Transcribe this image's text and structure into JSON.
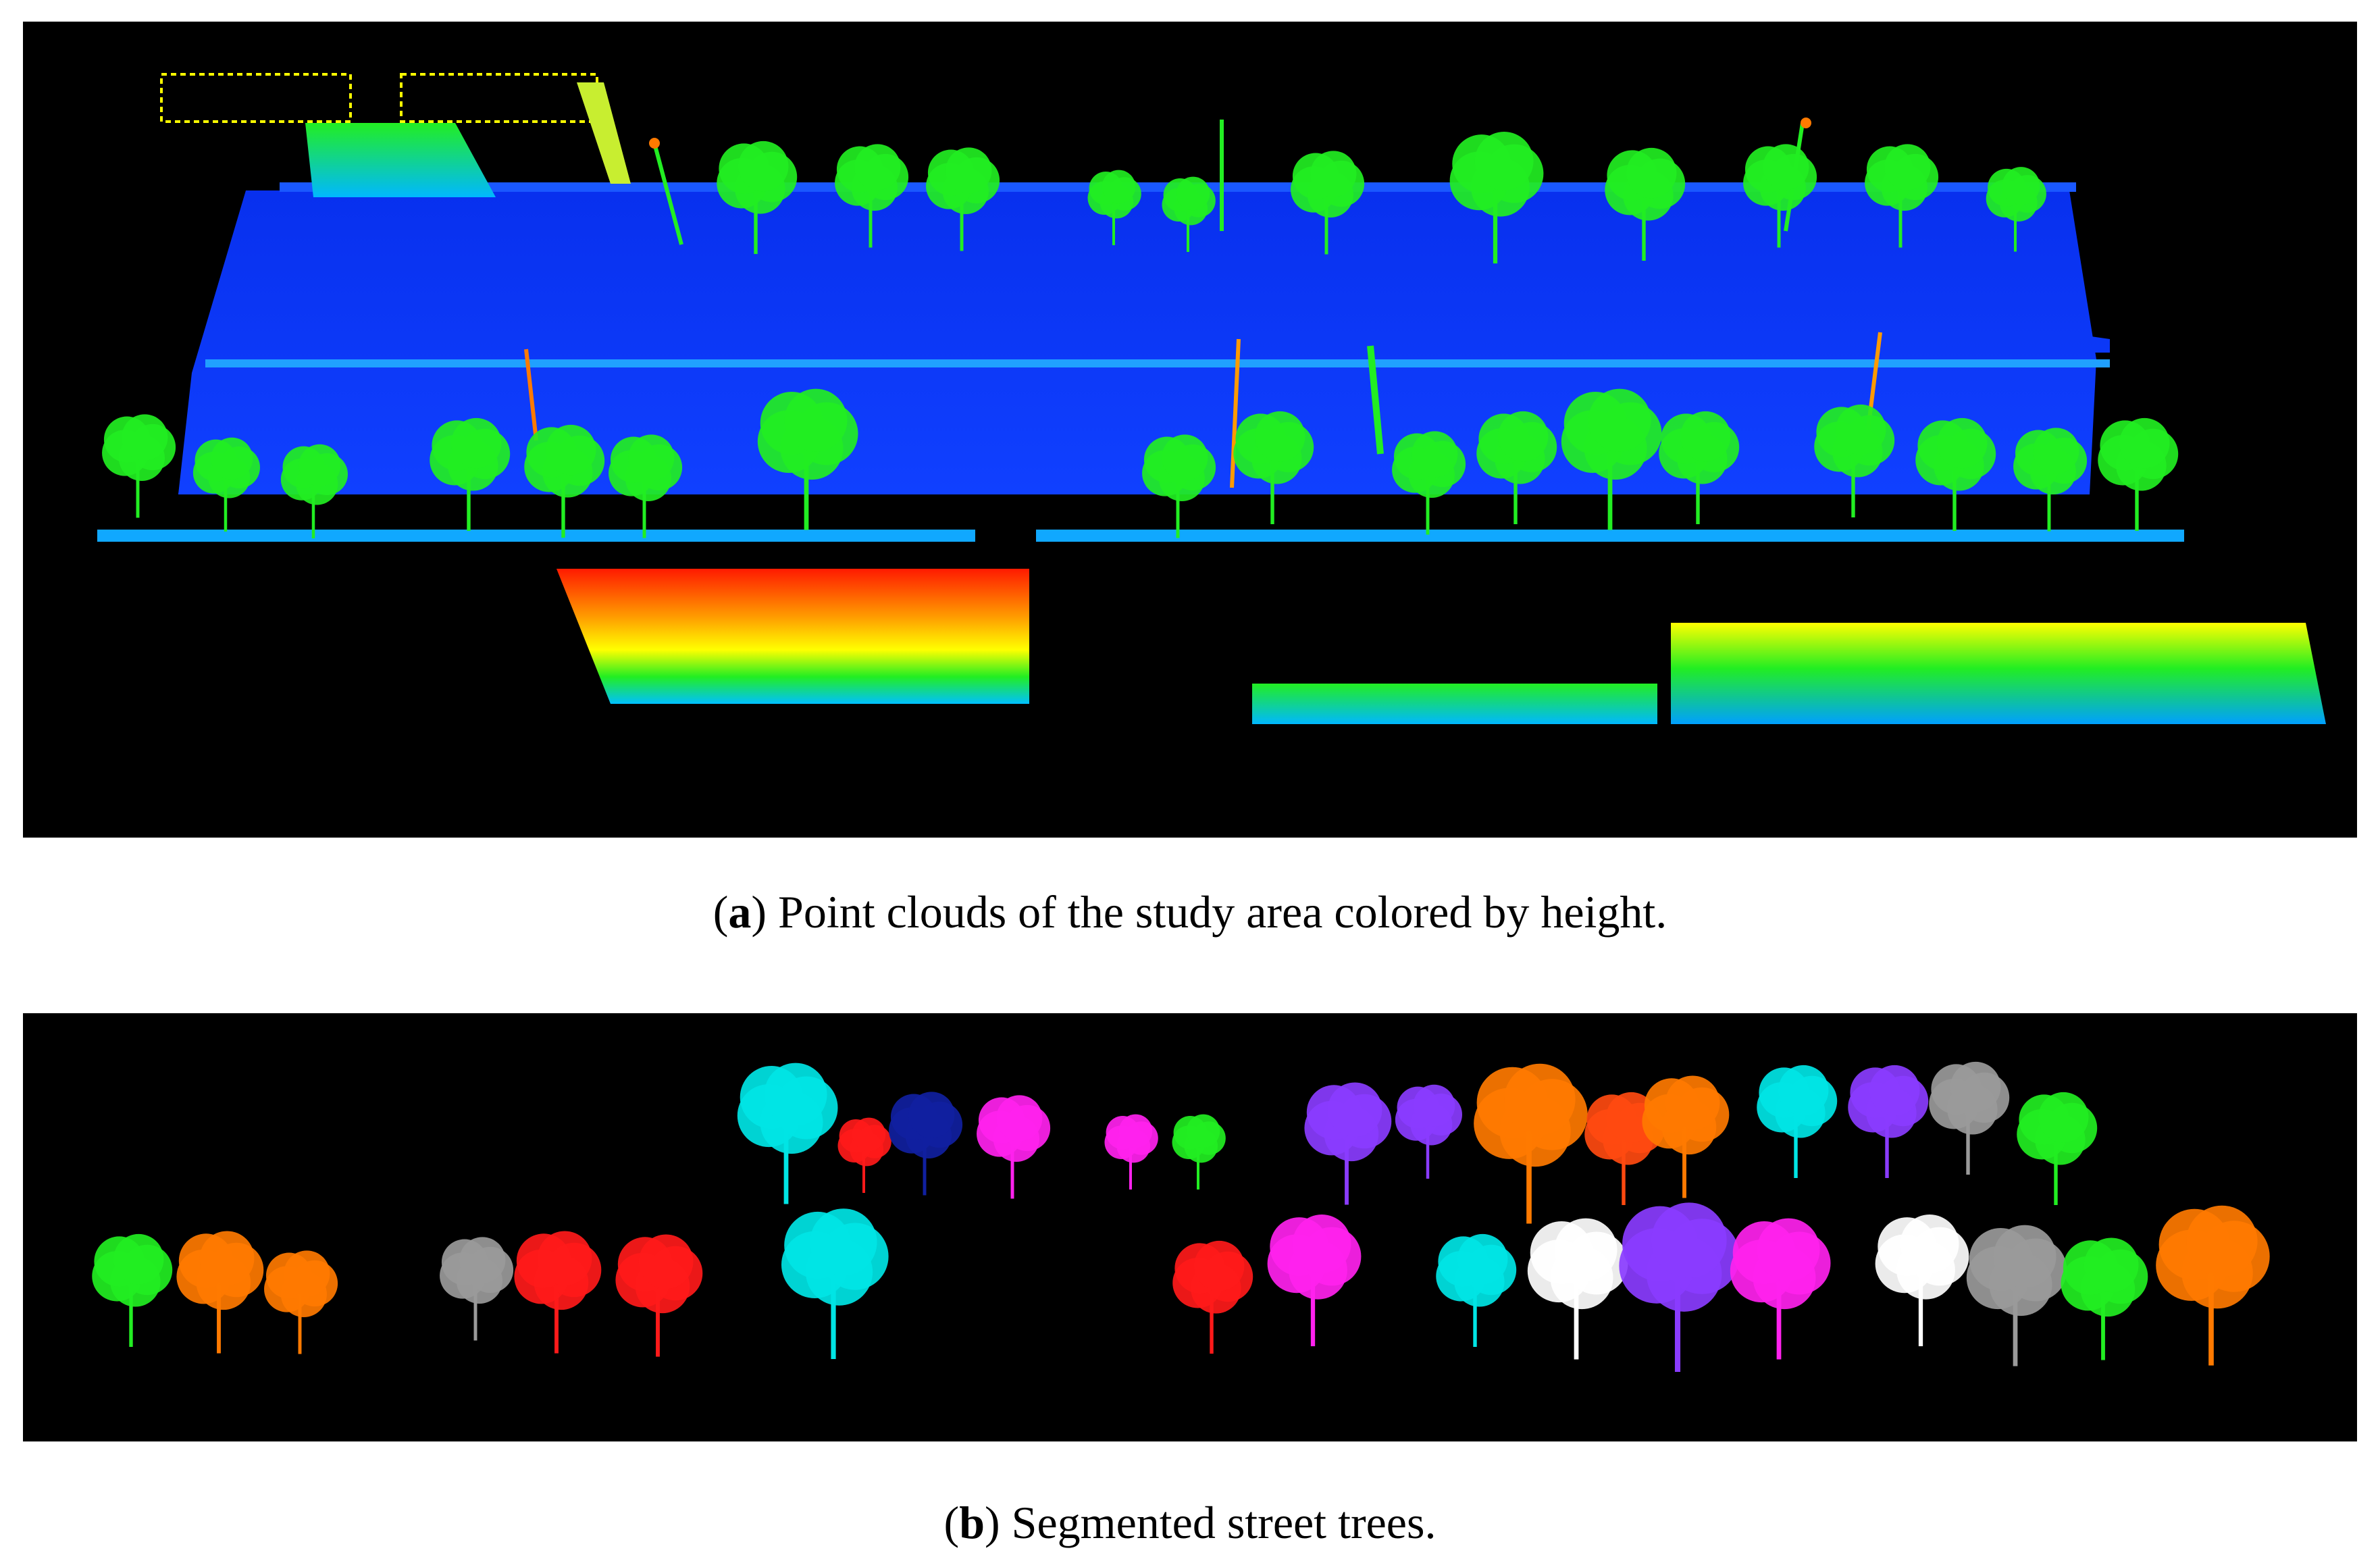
{
  "figure": {
    "panel_a": {
      "label": "a",
      "caption_text": "Point clouds of the study area colored by height.",
      "image_subject": "lidar-point-cloud-height-colored"
    },
    "panel_b": {
      "label": "b",
      "caption_text": "Segmented street trees.",
      "image_subject": "segmented-street-tree-point-clouds"
    }
  },
  "colors": {
    "background": "#000000",
    "ground_blue": "#1030ff",
    "low_cyan": "#00c8ff",
    "tree_green": "#22ee22",
    "mid_yellow": "#ffff00",
    "high_red": "#ff2200",
    "pole_orange": "#ff7a00"
  },
  "segment_colors": [
    "#00e5e5",
    "#ff1a1a",
    "#1020a0",
    "#ff22ee",
    "#22ee22",
    "#8a3cff",
    "#ff7a00",
    "#ff4a10",
    "#9a9a9a",
    "#ffffff"
  ]
}
